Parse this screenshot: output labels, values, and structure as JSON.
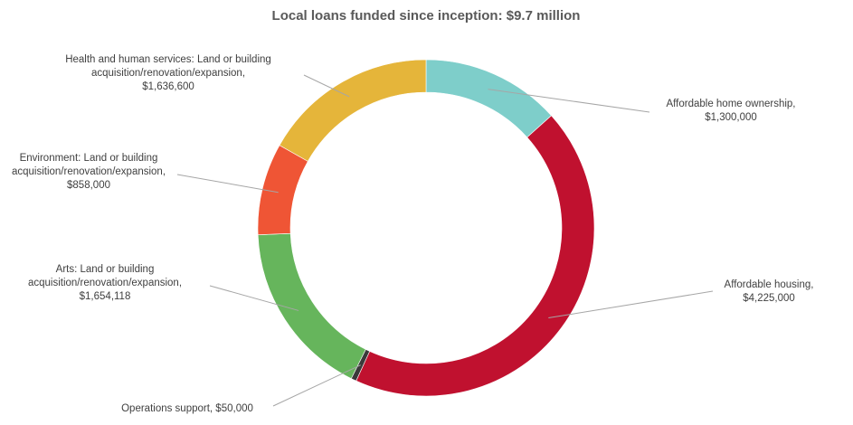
{
  "chart_data": {
    "type": "pie",
    "title": "Local loans funded since inception: $9.7 million",
    "categories": [
      "Affordable home ownership",
      "Affordable housing",
      "Operations support",
      "Arts: Land or building acquisition/renovation/expansion",
      "Environment:  Land or building acquisition/renovation/expansion",
      "Health and human services: Land or building acquisition/renovation/expansion"
    ],
    "values": [
      1300000,
      4225000,
      50000,
      1654118,
      858000,
      1636600
    ],
    "colors": [
      "#7ececa",
      "#c0112f",
      "#3a3a3a",
      "#66b55c",
      "#ef5535",
      "#e5b53a"
    ],
    "labels": [
      [
        "Affordable home ownership,",
        "$1,300,000"
      ],
      [
        "Affordable housing,",
        "$4,225,000"
      ],
      [
        "Operations support,  $50,000"
      ],
      [
        "Arts: Land or building",
        "acquisition/renovation/expansion,",
        "$1,654,118"
      ],
      [
        "Environment:  Land or building",
        "acquisition/renovation/expansion,",
        "$858,000"
      ],
      [
        "Health and human services: Land or building",
        "acquisition/renovation/expansion,",
        "$1,636,600"
      ]
    ],
    "legend": "none",
    "grid": false
  }
}
